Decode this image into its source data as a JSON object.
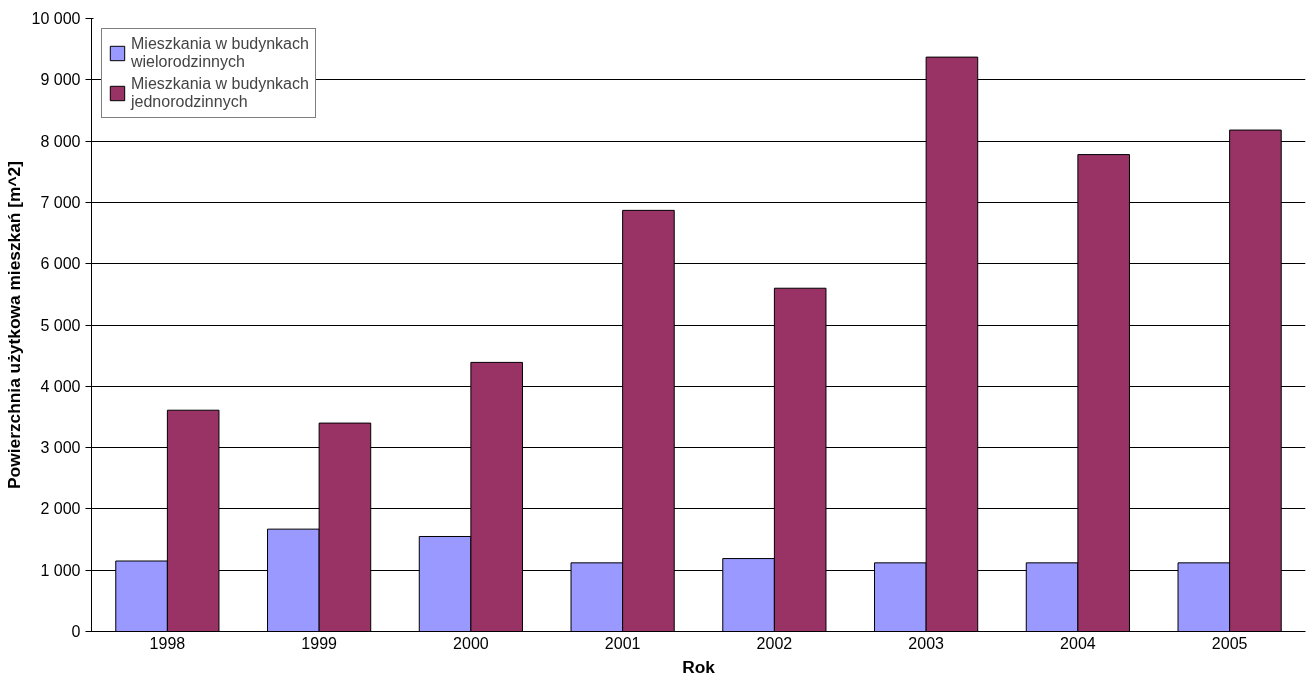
{
  "chart_data": {
    "type": "bar",
    "xlabel": "Rok",
    "ylabel": "Powierzchnia użytkowa mieszkań [m^2]",
    "categories": [
      "1998",
      "1999",
      "2000",
      "2001",
      "2002",
      "2003",
      "2004",
      "2005"
    ],
    "series": [
      {
        "name": "Mieszkania w budynkach wielorodzinnych",
        "color": "#9999ff",
        "values": [
          1150,
          1670,
          1550,
          1120,
          1190,
          1120,
          1120,
          1120
        ]
      },
      {
        "name": "Mieszkania w budynkach jednorodzinnych",
        "color": "#993366",
        "values": [
          3610,
          3400,
          4390,
          6870,
          5600,
          9370,
          7780,
          8180
        ]
      }
    ],
    "ylim": [
      0,
      10000
    ],
    "yticks": [
      {
        "value": 0,
        "label": "0"
      },
      {
        "value": 1000,
        "label": "1 000"
      },
      {
        "value": 2000,
        "label": "2 000"
      },
      {
        "value": 3000,
        "label": "3 000"
      },
      {
        "value": 4000,
        "label": "4 000"
      },
      {
        "value": 5000,
        "label": "5 000"
      },
      {
        "value": 6000,
        "label": "6 000"
      },
      {
        "value": 7000,
        "label": "7 000"
      },
      {
        "value": 8000,
        "label": "8 000"
      },
      {
        "value": 9000,
        "label": "9 000"
      },
      {
        "value": 10000,
        "label": "10 000"
      }
    ],
    "grid": "y",
    "legend": "top left"
  }
}
